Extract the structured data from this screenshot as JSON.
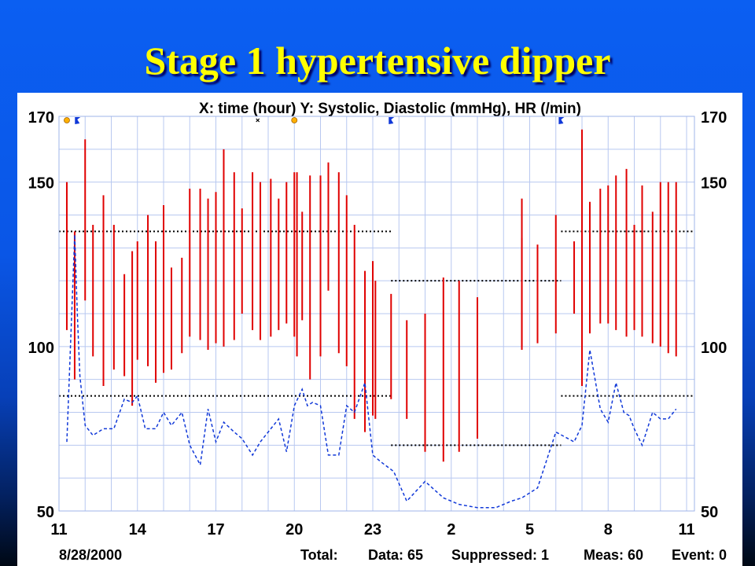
{
  "slide_title": "Stage 1 hypertensive dipper",
  "chart_data": {
    "type": "line",
    "title": "X: time (hour)  Y: Systolic, Diastolic (mmHg), HR (/min)",
    "xlabel": "time (hour)",
    "ylabel": "Systolic, Diastolic (mmHg), HR (/min)",
    "x_ticks": [
      "11",
      "14",
      "17",
      "20",
      "23",
      "2",
      "5",
      "8",
      "11"
    ],
    "x_tick_hours": [
      11,
      14,
      17,
      20,
      23,
      26,
      29,
      32,
      35
    ],
    "xlim": [
      11,
      35.3
    ],
    "y_ticks": [
      50,
      100,
      150,
      170
    ],
    "ylim": [
      50,
      170
    ],
    "grid": true,
    "date": "8/28/2000",
    "summary": {
      "total_label": "Total:",
      "data": "Data: 65",
      "suppressed": "Suppressed: 1",
      "meas": "Meas: 60",
      "event": "Event: 0"
    },
    "series": [
      {
        "name": "Systolic/Diastolic range",
        "kind": "range_bars",
        "color": "#e00000",
        "x": [
          11.3,
          11.6,
          12,
          12.3,
          12.7,
          13.1,
          13.5,
          13.8,
          14,
          14.4,
          14.7,
          15,
          15.3,
          15.7,
          16,
          16.4,
          16.7,
          17,
          17.3,
          17.7,
          18,
          18.4,
          18.7,
          19.1,
          19.4,
          19.7,
          20,
          20.1,
          20.3,
          20.6,
          21,
          21.3,
          21.7,
          22,
          22.3,
          22.7,
          23,
          23.1,
          23.7,
          24.3,
          25,
          25.7,
          26.3,
          27,
          28.7,
          28.7,
          29.3,
          30,
          30.7,
          31,
          31.3,
          31.7,
          32,
          32.3,
          32.7,
          33,
          33.3,
          33.7,
          34,
          34.3,
          34.6
        ],
        "high": [
          150,
          135,
          163,
          137,
          146,
          137,
          122,
          129,
          132,
          140,
          132,
          143,
          124,
          127,
          148,
          148,
          145,
          147,
          160,
          153,
          142,
          153,
          150,
          151,
          145,
          150,
          153,
          153,
          141,
          152,
          152,
          156,
          153,
          146,
          137,
          123,
          126,
          120,
          116,
          108,
          110,
          121,
          120,
          115,
          145,
          133,
          131,
          140,
          132,
          166,
          144,
          148,
          149,
          152,
          154,
          137,
          149,
          141,
          150,
          150,
          150
        ],
        "low": [
          105,
          90,
          114,
          97,
          88,
          93,
          91,
          82,
          96,
          94,
          89,
          92,
          93,
          98,
          103,
          102,
          99,
          101,
          100,
          102,
          110,
          105,
          102,
          103,
          105,
          107,
          103,
          97,
          108,
          90,
          97,
          117,
          98,
          94,
          78,
          74,
          79,
          78,
          84,
          78,
          68,
          65,
          68,
          72,
          100,
          99,
          101,
          104,
          110,
          88,
          104,
          107,
          107,
          105,
          103,
          105,
          103,
          101,
          100,
          98,
          97
        ]
      },
      {
        "name": "HR",
        "kind": "dashed_line",
        "color": "#1038d8",
        "x": [
          11.3,
          11.6,
          11.7,
          11.8,
          12,
          12.3,
          12.7,
          13.1,
          13.5,
          13.8,
          14,
          14.3,
          14.7,
          15,
          15.3,
          15.7,
          16,
          16.4,
          16.7,
          17,
          17.3,
          17.7,
          18,
          18.4,
          18.7,
          19,
          19.4,
          19.7,
          20,
          20.3,
          20.5,
          20.7,
          21,
          21.3,
          21.7,
          22,
          22.3,
          22.7,
          23,
          23.3,
          23.8,
          24.3,
          25,
          25.7,
          26.3,
          27,
          27.7,
          28.3,
          28.7,
          29.3,
          30,
          30.7,
          31,
          31.3,
          31.7,
          32,
          32.3,
          32.6,
          32.8,
          33,
          33.3,
          33.7,
          34,
          34.3,
          34.6
        ],
        "values": [
          71,
          134,
          110,
          91,
          76,
          73,
          75,
          75,
          84,
          83,
          85,
          75,
          75,
          80,
          76,
          80,
          70,
          64,
          81,
          71,
          77,
          74,
          72,
          67,
          71,
          74,
          78,
          68,
          82,
          87,
          82,
          83,
          82,
          67,
          67,
          82,
          80,
          89,
          67,
          65,
          62,
          53,
          59,
          54,
          52,
          51,
          51,
          53,
          54,
          57,
          74,
          71,
          76,
          99,
          81,
          77,
          89,
          80,
          79,
          75,
          70,
          80,
          78,
          78,
          81
        ]
      }
    ],
    "reference_lines": [
      {
        "x_start": 11,
        "x_end": 23.7,
        "y": 135,
        "style": "dotted"
      },
      {
        "x_start": 11,
        "x_end": 23.7,
        "y": 85,
        "style": "dotted"
      },
      {
        "x_start": 23.7,
        "x_end": 30.2,
        "y": 120,
        "style": "dotted"
      },
      {
        "x_start": 23.7,
        "x_end": 30.2,
        "y": 70,
        "style": "dotted"
      },
      {
        "x_start": 30.2,
        "x_end": 35.3,
        "y": 135,
        "style": "dotted"
      },
      {
        "x_start": 30.2,
        "x_end": 35.3,
        "y": 85,
        "style": "dotted"
      }
    ],
    "event_markers": [
      {
        "x": 11.3,
        "type": "dot",
        "color": "#ffb000"
      },
      {
        "x": 11.7,
        "type": "flag",
        "color": "#1038d8"
      },
      {
        "x": 18.6,
        "type": "cross",
        "color": "#000000"
      },
      {
        "x": 20.0,
        "type": "dot",
        "color": "#ffb000"
      },
      {
        "x": 23.7,
        "type": "flag",
        "color": "#1038d8"
      },
      {
        "x": 30.2,
        "type": "flag",
        "color": "#1038d8"
      }
    ]
  }
}
